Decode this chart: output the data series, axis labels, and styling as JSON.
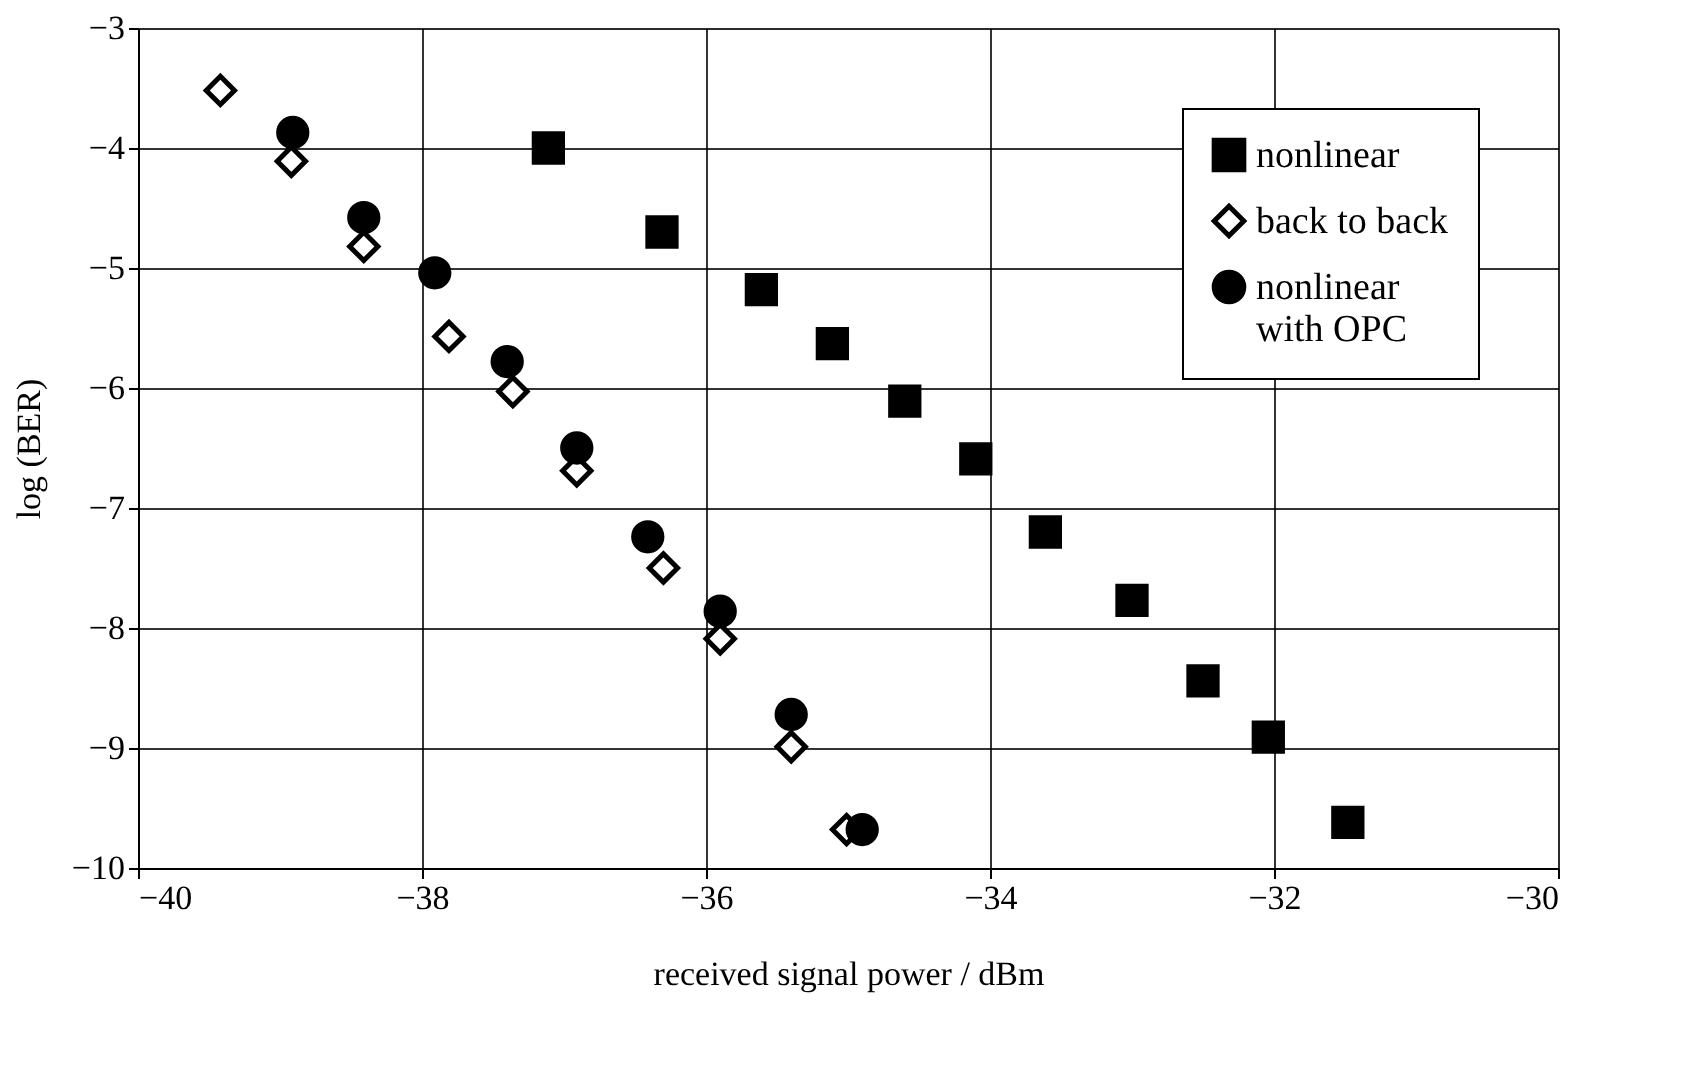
{
  "chart_data": {
    "type": "scatter",
    "xlabel": "received signal power / dBm",
    "ylabel": "log (BER)",
    "xlim": [
      -40,
      -30
    ],
    "xticks": [
      {
        "value": -40,
        "label": "−40"
      },
      {
        "value": -38,
        "label": "−38"
      },
      {
        "value": -36,
        "label": "−36"
      },
      {
        "value": -34,
        "label": "−34"
      },
      {
        "value": -32,
        "label": "−32"
      },
      {
        "value": -30,
        "label": "−30"
      }
    ],
    "ylim": [
      -10,
      -3
    ],
    "yticks": [
      {
        "value": -10,
        "label": "−10"
      },
      {
        "value": -9,
        "label": "−9"
      },
      {
        "value": -8,
        "label": "−8"
      },
      {
        "value": -7,
        "label": "−7"
      },
      {
        "value": -6,
        "label": "−6"
      },
      {
        "value": -5,
        "label": "−5"
      },
      {
        "value": -4,
        "label": "−4"
      },
      {
        "value": -3,
        "label": "−3"
      }
    ],
    "grid": true,
    "legend": "top right",
    "series": [
      {
        "name": "nonlinear",
        "color": "#000000",
        "marker": "square",
        "x": [
          -37.11,
          -36.31,
          -35.61,
          -35.11,
          -34.6,
          -34.1,
          -33.61,
          -33.0,
          -32.5,
          -32.04,
          -31.48
        ],
        "values": [
          -4.0,
          -4.7,
          -5.18,
          -5.63,
          -6.11,
          -6.59,
          -7.2,
          -7.77,
          -8.44,
          -8.91,
          -9.62
        ]
      },
      {
        "name": "back to back",
        "color": "#000000",
        "marker": "diamond",
        "x": [
          -39.42,
          -38.92,
          -38.41,
          -37.81,
          -37.36,
          -36.91,
          -36.3,
          -35.9,
          -35.4,
          -35.01
        ],
        "values": [
          -3.52,
          -4.11,
          -4.82,
          -5.57,
          -6.03,
          -6.69,
          -7.5,
          -8.09,
          -8.99,
          -9.68
        ]
      },
      {
        "name": "nonlinear\nwith OPC",
        "color": "#000000",
        "marker": "circle",
        "x": [
          -38.91,
          -38.41,
          -37.91,
          -37.4,
          -36.91,
          -36.41,
          -35.9,
          -35.4,
          -34.9
        ],
        "values": [
          -3.87,
          -4.58,
          -5.04,
          -5.78,
          -6.5,
          -7.24,
          -7.86,
          -8.72,
          -9.68
        ]
      }
    ]
  }
}
